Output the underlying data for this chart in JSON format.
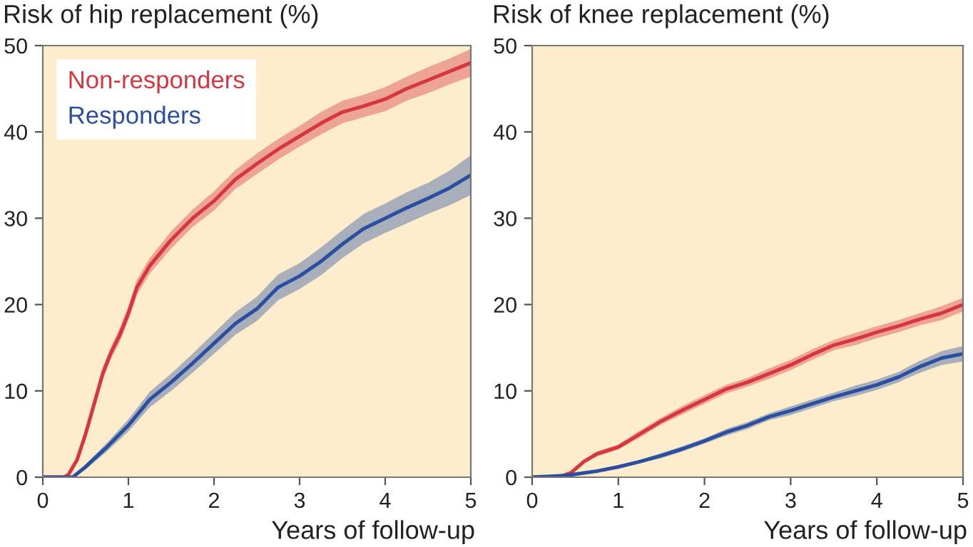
{
  "chart_data": [
    {
      "type": "line",
      "title": "Risk of hip replacement (%)",
      "xlabel": "Years of follow-up",
      "xlim": [
        0,
        5
      ],
      "xticks": [
        0,
        1,
        2,
        3,
        4,
        5
      ],
      "ylim": [
        0,
        50
      ],
      "yticks": [
        0,
        10,
        20,
        30,
        40,
        50
      ],
      "grid": false,
      "legend": "top left",
      "marker": "none",
      "line_style": "solid",
      "series": [
        {
          "name": "Non-responders",
          "color": "#d7363e",
          "x": [
            0,
            0.25,
            0.3,
            0.4,
            0.5,
            0.6,
            0.7,
            0.8,
            0.9,
            1.0,
            1.1,
            1.25,
            1.5,
            1.75,
            2,
            2.25,
            2.5,
            2.75,
            3,
            3.25,
            3.5,
            3.75,
            4,
            4.25,
            4.5,
            4.75,
            5
          ],
          "values": [
            0,
            0,
            0.3,
            2,
            5,
            8.5,
            12,
            14.5,
            16.5,
            19,
            22,
            24.5,
            27.5,
            30,
            32,
            34.5,
            36.3,
            38,
            39.5,
            41,
            42.3,
            43,
            43.8,
            45,
            46,
            47,
            48
          ],
          "lower": [
            0,
            0,
            0.2,
            1.7,
            4.5,
            7.9,
            11.3,
            13.8,
            15.7,
            18.2,
            21.1,
            23.6,
            26.5,
            29,
            30.9,
            33.4,
            35.1,
            36.8,
            38.3,
            39.7,
            41,
            41.7,
            42.4,
            43.6,
            44.5,
            45.5,
            46.4
          ],
          "upper": [
            0,
            0,
            0.4,
            2.3,
            5.5,
            9.1,
            12.7,
            15.2,
            17.3,
            19.8,
            22.9,
            25.4,
            28.5,
            31,
            33.1,
            35.6,
            37.5,
            39.2,
            40.7,
            42.3,
            43.6,
            44.3,
            45.2,
            46.4,
            47.5,
            48.5,
            49.6
          ]
        },
        {
          "name": "Responders",
          "color": "#2a4fa0",
          "x": [
            0,
            0.35,
            0.5,
            0.75,
            1,
            1.25,
            1.5,
            1.75,
            2,
            2.25,
            2.5,
            2.75,
            3,
            3.25,
            3.5,
            3.75,
            4,
            4.25,
            4.5,
            4.75,
            5
          ],
          "values": [
            0,
            0,
            1.2,
            3.5,
            6,
            9,
            11,
            13.2,
            15.5,
            17.8,
            19.5,
            22,
            23.3,
            25,
            27,
            28.8,
            30,
            31.2,
            32.3,
            33.5,
            35
          ],
          "lower": [
            0,
            0,
            0.9,
            3,
            5.3,
            8.1,
            10,
            12.1,
            14.3,
            16.5,
            18.1,
            20.5,
            21.8,
            23.4,
            25.4,
            27.1,
            28.3,
            29.4,
            30.5,
            31.5,
            32.7
          ],
          "upper": [
            0,
            0,
            1.5,
            4,
            6.7,
            9.9,
            12,
            14.3,
            16.7,
            19.1,
            20.9,
            23.5,
            24.8,
            26.6,
            28.6,
            30.5,
            31.7,
            33,
            34.1,
            35.5,
            37.3
          ]
        }
      ]
    },
    {
      "type": "line",
      "title": "Risk of knee replacement (%)",
      "xlabel": "Years of follow-up",
      "xlim": [
        0,
        5
      ],
      "xticks": [
        0,
        1,
        2,
        3,
        4,
        5
      ],
      "ylim": [
        0,
        50
      ],
      "yticks": [
        0,
        10,
        20,
        30,
        40,
        50
      ],
      "grid": false,
      "legend": false,
      "marker": "none",
      "line_style": "solid",
      "series": [
        {
          "color": "#d7363e",
          "x": [
            0,
            0.3,
            0.45,
            0.6,
            0.75,
            1,
            1.25,
            1.5,
            1.75,
            2,
            2.25,
            2.5,
            2.75,
            3,
            3.25,
            3.5,
            3.75,
            4,
            4.25,
            4.5,
            4.75,
            5
          ],
          "values": [
            0,
            0,
            0.5,
            1.8,
            2.7,
            3.5,
            5,
            6.5,
            7.8,
            9,
            10.2,
            11,
            12,
            13,
            14.2,
            15.3,
            16,
            16.8,
            17.5,
            18.3,
            19,
            20
          ],
          "lower": [
            0,
            0,
            0.4,
            1.6,
            2.4,
            3.2,
            4.6,
            6.1,
            7.3,
            8.5,
            9.7,
            10.5,
            11.4,
            12.4,
            13.6,
            14.7,
            15.3,
            16.1,
            16.8,
            17.6,
            18.2,
            19.2
          ],
          "upper": [
            0,
            0,
            0.6,
            2,
            3,
            3.8,
            5.4,
            6.9,
            8.3,
            9.5,
            10.7,
            11.5,
            12.6,
            13.6,
            14.8,
            15.9,
            16.7,
            17.5,
            18.2,
            19,
            19.8,
            20.8
          ]
        },
        {
          "color": "#2a4fa0",
          "x": [
            0,
            0.4,
            0.75,
            1,
            1.25,
            1.5,
            1.75,
            2,
            2.25,
            2.5,
            2.75,
            3,
            3.25,
            3.5,
            3.75,
            4,
            4.25,
            4.5,
            4.75,
            5
          ],
          "values": [
            0,
            0.2,
            0.7,
            1.2,
            1.8,
            2.5,
            3.3,
            4.2,
            5.2,
            6,
            7,
            7.7,
            8.5,
            9.3,
            10,
            10.7,
            11.6,
            12.8,
            13.8,
            14.3
          ],
          "lower": [
            0,
            0.2,
            0.6,
            1,
            1.6,
            2.2,
            3,
            3.9,
            4.8,
            5.6,
            6.6,
            7.2,
            8,
            8.8,
            9.4,
            10.1,
            11,
            12.1,
            13,
            13.4
          ],
          "upper": [
            0,
            0.2,
            0.8,
            1.4,
            2,
            2.8,
            3.6,
            4.5,
            5.6,
            6.4,
            7.4,
            8.2,
            9,
            9.8,
            10.6,
            11.3,
            12.2,
            13.5,
            14.6,
            15.2
          ]
        }
      ]
    }
  ]
}
